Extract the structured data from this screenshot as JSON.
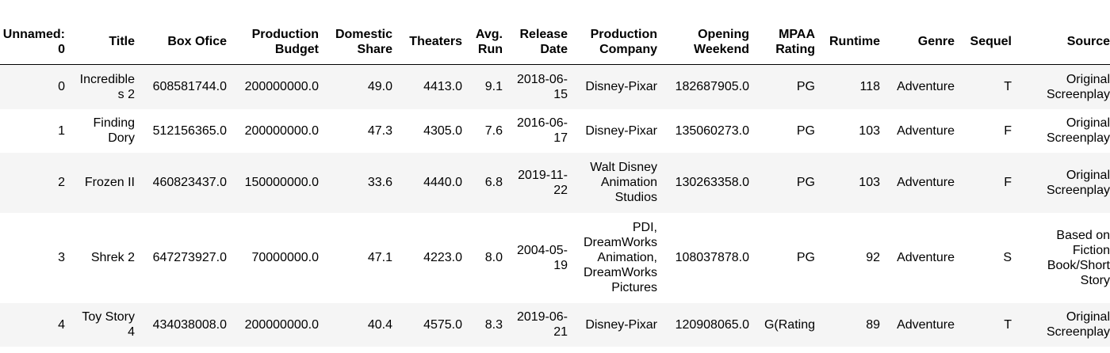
{
  "table": {
    "columns": [
      "Unnamed: 0",
      "Title",
      "Box Ofice",
      "Production Budget",
      "Domestic Share",
      "Theaters",
      "Avg. Run",
      "Release Date",
      "Production Company",
      "Opening Weekend",
      "MPAA Rating",
      "Runtime",
      "Genre",
      "Sequel",
      "Source"
    ],
    "rows": [
      [
        "0",
        "Incredibles 2",
        "608581744.0",
        "200000000.0",
        "49.0",
        "4413.0",
        "9.1",
        "2018-06-15",
        "Disney-Pixar",
        "182687905.0",
        "PG",
        "118",
        "Adventure",
        "T",
        "Original Screenplay"
      ],
      [
        "1",
        "Finding Dory",
        "512156365.0",
        "200000000.0",
        "47.3",
        "4305.0",
        "7.6",
        "2016-06-17",
        "Disney-Pixar",
        "135060273.0",
        "PG",
        "103",
        "Adventure",
        "F",
        "Original Screenplay"
      ],
      [
        "2",
        "Frozen II",
        "460823437.0",
        "150000000.0",
        "33.6",
        "4440.0",
        "6.8",
        "2019-11-22",
        "Walt Disney Animation Studios",
        "130263358.0",
        "PG",
        "103",
        "Adventure",
        "F",
        "Original Screenplay"
      ],
      [
        "3",
        "Shrek 2",
        "647273927.0",
        "70000000.0",
        "47.1",
        "4223.0",
        "8.0",
        "2004-05-19",
        "PDI, DreamWorks Animation, DreamWorks Pictures",
        "108037878.0",
        "PG",
        "92",
        "Adventure",
        "S",
        "Based on Fiction Book/Short Story"
      ],
      [
        "4",
        "Toy Story 4",
        "434038008.0",
        "200000000.0",
        "40.4",
        "4575.0",
        "8.3",
        "2019-06-21",
        "Disney-Pixar",
        "120908065.0",
        "G(Rating",
        "89",
        "Adventure",
        "T",
        "Original Screenplay"
      ]
    ]
  }
}
